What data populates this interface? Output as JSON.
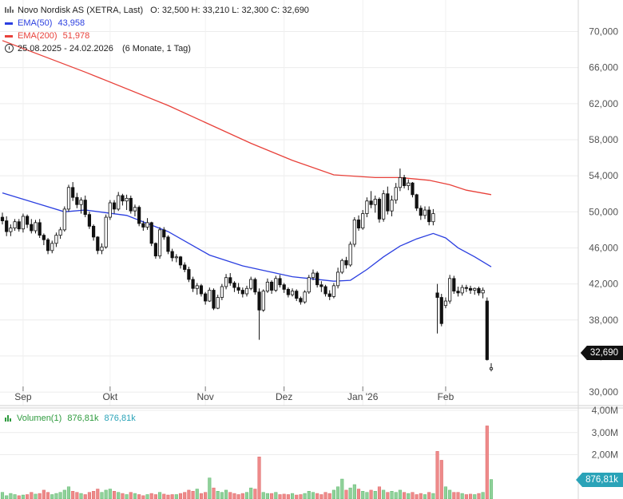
{
  "header": {
    "title": "Novo Nordisk AS (XETRA, Last)",
    "ohlc": "O: 32,500   H: 33,210   L: 32,300   C: 32,690",
    "ema50_label": "EMA(50)",
    "ema50_value": "43,958",
    "ema200_label": "EMA(200)",
    "ema200_value": "51,978",
    "range_text": "25.08.2025 - 24.02.2026",
    "period_text": "(6 Monate, 1 Tag)"
  },
  "volume_legend": {
    "label": "Volumen(1)",
    "value1": "876,81k",
    "value2": "876,81k"
  },
  "last_price_badge": "32,690",
  "last_volume_badge": "876,81k",
  "colors": {
    "ema50": "#2b3fe0",
    "ema200": "#e8413a",
    "vol_up": "#8fd19a",
    "vol_down": "#ee8a8a",
    "candle": "#111111",
    "volume_text": "#2e9b3e",
    "volume_text2": "#2aa3b8"
  },
  "chart_data": {
    "type": "candlestick",
    "y_ticks": [
      "70,000",
      "66,000",
      "62,000",
      "58,000",
      "54,000",
      "50,000",
      "46,000",
      "42,000",
      "38,000",
      "34,000",
      "30,000"
    ],
    "x_ticks": [
      "Sep",
      "Okt",
      "Nov",
      "Dez",
      "Jan '26",
      "Feb"
    ],
    "volume_ticks": [
      "4,00M",
      "3,00M",
      "2,00M"
    ],
    "ylim": [
      28.5,
      73.5
    ],
    "volume_ylim": [
      0,
      4.0
    ],
    "candles": [
      [
        49.4,
        49.9,
        48.6,
        49.0
      ],
      [
        49.0,
        49.5,
        47.3,
        47.8
      ],
      [
        47.8,
        48.6,
        47.3,
        48.2
      ],
      [
        48.2,
        49.2,
        47.9,
        48.9
      ],
      [
        48.9,
        49.2,
        47.8,
        48.1
      ],
      [
        48.1,
        49.8,
        47.7,
        49.5
      ],
      [
        49.5,
        49.7,
        48.2,
        48.6
      ],
      [
        48.6,
        49.2,
        47.6,
        47.9
      ],
      [
        47.9,
        49.1,
        47.6,
        48.8
      ],
      [
        48.8,
        49.2,
        47.1,
        47.4
      ],
      [
        47.4,
        47.6,
        46.3,
        46.9
      ],
      [
        46.9,
        47.1,
        45.3,
        45.7
      ],
      [
        45.7,
        46.8,
        45.4,
        46.5
      ],
      [
        46.5,
        47.7,
        46.1,
        47.4
      ],
      [
        47.4,
        48.3,
        47.0,
        48.0
      ],
      [
        48.0,
        50.6,
        47.8,
        50.3
      ],
      [
        50.3,
        53.0,
        50.0,
        52.7
      ],
      [
        52.7,
        53.3,
        51.2,
        51.6
      ],
      [
        51.6,
        52.1,
        50.4,
        50.8
      ],
      [
        50.8,
        51.6,
        49.8,
        51.3
      ],
      [
        51.3,
        51.8,
        49.4,
        49.7
      ],
      [
        49.7,
        50.0,
        48.1,
        48.4
      ],
      [
        48.4,
        48.6,
        46.8,
        47.2
      ],
      [
        47.2,
        47.3,
        45.3,
        45.7
      ],
      [
        45.7,
        46.5,
        45.3,
        46.1
      ],
      [
        46.1,
        49.7,
        45.9,
        49.4
      ],
      [
        49.4,
        51.3,
        49.1,
        51.0
      ],
      [
        51.0,
        51.3,
        49.8,
        50.3
      ],
      [
        50.3,
        52.2,
        50.1,
        51.8
      ],
      [
        51.8,
        52.0,
        50.7,
        51.2
      ],
      [
        51.2,
        51.9,
        50.2,
        51.5
      ],
      [
        51.5,
        51.8,
        49.8,
        50.1
      ],
      [
        50.1,
        50.8,
        49.5,
        50.5
      ],
      [
        50.5,
        50.7,
        48.4,
        48.7
      ],
      [
        48.7,
        49.0,
        47.9,
        48.3
      ],
      [
        48.3,
        49.3,
        48.0,
        48.8
      ],
      [
        48.8,
        48.9,
        46.2,
        46.5
      ],
      [
        46.5,
        46.6,
        44.8,
        45.1
      ],
      [
        45.1,
        48.3,
        44.8,
        48.0
      ],
      [
        48.0,
        48.3,
        46.9,
        47.2
      ],
      [
        47.2,
        47.4,
        45.3,
        45.6
      ],
      [
        45.6,
        45.9,
        44.5,
        44.9
      ],
      [
        44.9,
        45.3,
        44.4,
        45.0
      ],
      [
        45.0,
        45.1,
        43.7,
        44.1
      ],
      [
        44.1,
        44.4,
        43.3,
        43.6
      ],
      [
        43.6,
        43.9,
        42.2,
        42.5
      ],
      [
        42.5,
        42.8,
        41.1,
        41.5
      ],
      [
        41.5,
        42.1,
        40.8,
        41.8
      ],
      [
        41.8,
        42.0,
        40.6,
        40.9
      ],
      [
        40.9,
        41.1,
        39.7,
        40.1
      ],
      [
        40.1,
        41.6,
        40.0,
        41.3
      ],
      [
        41.3,
        41.5,
        39.1,
        39.3
      ],
      [
        39.3,
        40.8,
        39.2,
        40.5
      ],
      [
        40.5,
        42.0,
        40.2,
        41.7
      ],
      [
        41.7,
        43.1,
        41.4,
        42.7
      ],
      [
        42.7,
        43.2,
        41.8,
        42.1
      ],
      [
        42.1,
        42.3,
        41.1,
        41.6
      ],
      [
        41.6,
        42.1,
        40.9,
        41.3
      ],
      [
        41.3,
        41.6,
        40.5,
        40.9
      ],
      [
        40.9,
        41.8,
        40.6,
        41.5
      ],
      [
        41.5,
        42.8,
        41.3,
        42.5
      ],
      [
        42.5,
        42.7,
        40.8,
        41.1
      ],
      [
        41.1,
        41.5,
        35.8,
        39.1
      ],
      [
        39.1,
        41.4,
        38.9,
        41.2
      ],
      [
        41.2,
        42.6,
        41.0,
        42.2
      ],
      [
        42.2,
        42.4,
        40.9,
        41.3
      ],
      [
        41.3,
        42.9,
        41.1,
        42.6
      ],
      [
        42.6,
        43.0,
        41.6,
        41.9
      ],
      [
        41.9,
        42.1,
        41.0,
        41.4
      ],
      [
        41.4,
        41.6,
        40.5,
        40.8
      ],
      [
        40.8,
        41.5,
        40.6,
        41.2
      ],
      [
        41.2,
        41.4,
        40.1,
        40.4
      ],
      [
        40.4,
        40.6,
        39.7,
        40.0
      ],
      [
        40.0,
        41.3,
        39.8,
        41.1
      ],
      [
        41.1,
        43.0,
        40.9,
        42.7
      ],
      [
        42.7,
        43.6,
        42.4,
        43.2
      ],
      [
        43.2,
        43.4,
        41.6,
        41.9
      ],
      [
        41.9,
        42.3,
        41.1,
        41.7
      ],
      [
        41.7,
        41.9,
        40.6,
        40.9
      ],
      [
        40.9,
        41.3,
        40.2,
        40.6
      ],
      [
        40.6,
        42.1,
        40.4,
        41.8
      ],
      [
        41.8,
        43.8,
        41.5,
        43.3
      ],
      [
        43.3,
        44.8,
        43.1,
        44.6
      ],
      [
        44.6,
        45.0,
        43.7,
        44.1
      ],
      [
        44.1,
        46.7,
        43.9,
        46.4
      ],
      [
        46.4,
        49.4,
        46.1,
        49.1
      ],
      [
        49.1,
        49.6,
        47.9,
        48.2
      ],
      [
        48.2,
        50.2,
        48.0,
        49.8
      ],
      [
        49.8,
        51.6,
        49.4,
        51.2
      ],
      [
        51.2,
        52.3,
        50.4,
        50.8
      ],
      [
        50.8,
        51.8,
        49.9,
        51.4
      ],
      [
        51.4,
        51.6,
        48.8,
        49.2
      ],
      [
        49.2,
        52.4,
        48.9,
        52.0
      ],
      [
        52.0,
        52.8,
        49.7,
        50.1
      ],
      [
        50.1,
        51.8,
        49.5,
        51.3
      ],
      [
        51.3,
        53.2,
        50.9,
        52.7
      ],
      [
        52.7,
        54.8,
        52.3,
        53.8
      ],
      [
        53.8,
        54.1,
        52.6,
        52.9
      ],
      [
        52.9,
        53.6,
        52.4,
        53.2
      ],
      [
        53.2,
        53.3,
        51.6,
        51.9
      ],
      [
        51.9,
        52.0,
        50.1,
        50.4
      ],
      [
        50.4,
        50.7,
        49.1,
        49.6
      ],
      [
        49.6,
        50.6,
        49.2,
        50.2
      ],
      [
        50.2,
        50.6,
        48.5,
        48.9
      ],
      [
        48.9,
        50.3,
        48.5,
        49.8
      ],
      [
        41.0,
        42.0,
        36.5,
        40.5
      ],
      [
        40.5,
        40.9,
        37.3,
        37.6
      ],
      [
        39.6,
        40.5,
        39.3,
        40.1
      ],
      [
        40.1,
        43.0,
        39.8,
        42.6
      ],
      [
        42.6,
        42.9,
        40.9,
        41.2
      ],
      [
        41.2,
        41.7,
        40.6,
        41.0
      ],
      [
        41.0,
        41.9,
        40.7,
        41.6
      ],
      [
        41.6,
        41.9,
        41.1,
        41.5
      ],
      [
        41.5,
        41.8,
        40.9,
        41.3
      ],
      [
        41.3,
        41.6,
        40.8,
        41.5
      ],
      [
        41.5,
        41.7,
        40.7,
        41.0
      ],
      [
        41.0,
        41.6,
        40.4,
        41.3
      ],
      [
        40.1,
        40.5,
        33.5,
        33.6
      ],
      [
        32.5,
        33.21,
        32.3,
        32.69
      ]
    ],
    "ema50": [
      [
        0,
        52.1
      ],
      [
        15,
        50.0
      ],
      [
        20,
        50.2
      ],
      [
        30,
        49.6
      ],
      [
        40,
        47.8
      ],
      [
        50,
        45.2
      ],
      [
        58,
        44.0
      ],
      [
        70,
        42.8
      ],
      [
        80,
        42.3
      ],
      [
        84,
        42.4
      ],
      [
        88,
        43.6
      ],
      [
        92,
        45.0
      ],
      [
        96,
        46.2
      ],
      [
        100,
        47.0
      ],
      [
        104,
        47.6
      ],
      [
        107,
        47.1
      ],
      [
        110,
        46.0
      ],
      [
        114,
        45.0
      ],
      [
        118,
        43.9
      ]
    ],
    "ema200": [
      [
        0,
        69.0
      ],
      [
        20,
        65.5
      ],
      [
        40,
        61.8
      ],
      [
        60,
        57.6
      ],
      [
        70,
        55.7
      ],
      [
        80,
        54.1
      ],
      [
        90,
        53.8
      ],
      [
        96,
        53.8
      ],
      [
        103,
        53.5
      ],
      [
        108,
        53.0
      ],
      [
        112,
        52.4
      ],
      [
        118,
        51.9
      ]
    ],
    "volume": [
      0.3,
      0.15,
      0.25,
      0.2,
      0.15,
      0.18,
      0.2,
      0.3,
      0.22,
      0.25,
      0.4,
      0.3,
      0.2,
      0.25,
      0.3,
      0.4,
      0.55,
      0.35,
      0.3,
      0.25,
      0.2,
      0.3,
      0.35,
      0.45,
      0.3,
      0.4,
      0.45,
      0.35,
      0.3,
      0.25,
      0.2,
      0.3,
      0.25,
      0.2,
      0.15,
      0.2,
      0.25,
      0.2,
      0.3,
      0.22,
      0.18,
      0.2,
      0.2,
      0.25,
      0.3,
      0.4,
      0.35,
      0.45,
      0.25,
      0.3,
      0.95,
      0.5,
      0.35,
      0.3,
      0.4,
      0.3,
      0.25,
      0.2,
      0.25,
      0.3,
      0.5,
      0.45,
      1.9,
      0.3,
      0.25,
      0.25,
      0.3,
      0.2,
      0.22,
      0.2,
      0.25,
      0.18,
      0.2,
      0.25,
      0.35,
      0.3,
      0.25,
      0.2,
      0.3,
      0.25,
      0.4,
      0.55,
      0.9,
      0.4,
      0.5,
      0.65,
      0.45,
      0.35,
      0.3,
      0.4,
      0.35,
      0.55,
      0.4,
      0.3,
      0.35,
      0.3,
      0.4,
      0.3,
      0.25,
      0.3,
      0.2,
      0.25,
      0.2,
      0.3,
      0.25,
      2.15,
      1.75,
      0.55,
      0.4,
      0.3,
      0.3,
      0.25,
      0.2,
      0.22,
      0.2,
      0.25,
      0.3,
      3.3,
      0.88
    ],
    "volume_up": [
      1,
      1,
      1,
      1,
      0,
      1,
      0,
      0,
      1,
      0,
      0,
      0,
      1,
      1,
      1,
      1,
      1,
      0,
      0,
      1,
      0,
      0,
      0,
      0,
      1,
      1,
      1,
      0,
      1,
      0,
      1,
      0,
      1,
      0,
      0,
      1,
      0,
      0,
      1,
      0,
      0,
      0,
      1,
      0,
      0,
      0,
      0,
      1,
      0,
      0,
      1,
      0,
      1,
      1,
      1,
      0,
      0,
      0,
      0,
      1,
      1,
      0,
      0,
      1,
      1,
      0,
      1,
      0,
      0,
      0,
      1,
      0,
      0,
      1,
      1,
      1,
      0,
      0,
      0,
      0,
      1,
      1,
      1,
      0,
      1,
      1,
      0,
      1,
      1,
      0,
      1,
      0,
      1,
      0,
      1,
      1,
      1,
      0,
      1,
      0,
      0,
      0,
      1,
      0,
      1,
      0,
      0,
      1,
      1,
      0,
      0,
      1,
      0,
      0,
      1,
      0,
      1,
      0,
      1
    ]
  }
}
